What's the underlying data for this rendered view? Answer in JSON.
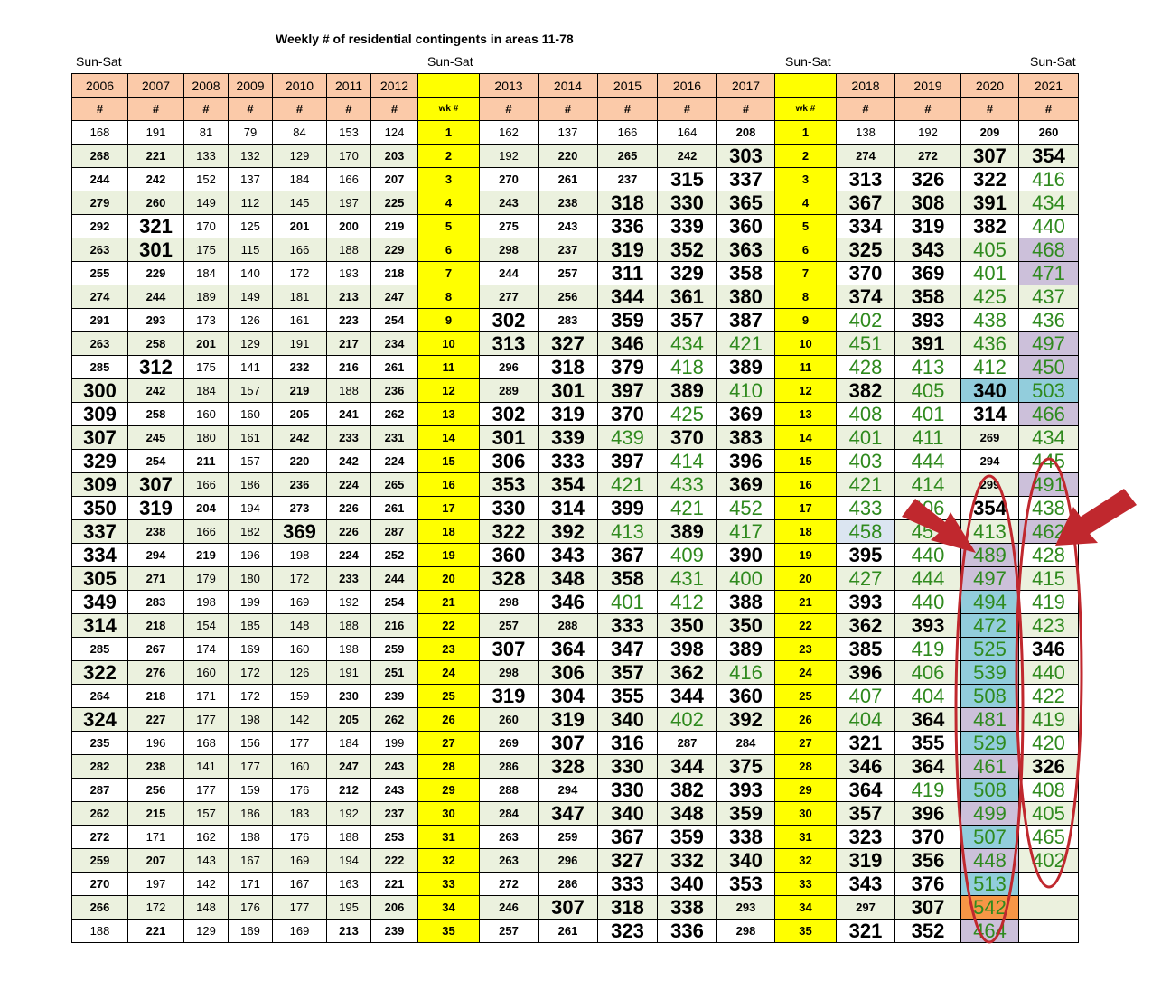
{
  "title": "Weekly # of residential contingents in areas 11-78",
  "sun_sat_labels": [
    "Sun-Sat",
    "Sun-Sat",
    "Sun-Sat",
    "Sun-Sat"
  ],
  "colors": {
    "header": "#fbcaa9",
    "week_column": "#ffff00",
    "row_fill": "#ebf1de",
    "green_text": "#2f8a1e",
    "highlight_teal": "#92cddc",
    "highlight_purple": "#ccc0da",
    "highlight_light_blue": "#dbe5f1",
    "highlight_orange": "#f79646",
    "annotation_red": "#c0282e"
  },
  "table": {
    "headers": [
      "2006",
      "2007",
      "2008",
      "2009",
      "2010",
      "2011",
      "2012",
      "",
      "2013",
      "2014",
      "2015",
      "2016",
      "2017",
      "",
      "2018",
      "2019",
      "2020",
      "2021"
    ],
    "subheaders": [
      "#",
      "#",
      "#",
      "#",
      "#",
      "#",
      "#",
      "wk #",
      "#",
      "#",
      "#",
      "#",
      "#",
      "wk #",
      "#",
      "#",
      "#",
      "#"
    ],
    "rows": [
      [
        "168",
        "191",
        "81",
        "79",
        "84",
        "153",
        "124",
        "1",
        "162",
        "137",
        "166",
        "164",
        "208",
        "1",
        "138",
        "192",
        "209",
        "260"
      ],
      [
        "268",
        "221",
        "133",
        "132",
        "129",
        "170",
        "203",
        "2",
        "192",
        "220",
        "265",
        "242",
        "303",
        "2",
        "274",
        "272",
        "307",
        "354"
      ],
      [
        "244",
        "242",
        "152",
        "137",
        "184",
        "166",
        "207",
        "3",
        "270",
        "261",
        "237",
        "315",
        "337",
        "3",
        "313",
        "326",
        "322",
        "416"
      ],
      [
        "279",
        "260",
        "149",
        "112",
        "145",
        "197",
        "225",
        "4",
        "243",
        "238",
        "318",
        "330",
        "365",
        "4",
        "367",
        "308",
        "391",
        "434"
      ],
      [
        "292",
        "321",
        "170",
        "125",
        "201",
        "200",
        "219",
        "5",
        "275",
        "243",
        "336",
        "339",
        "360",
        "5",
        "334",
        "319",
        "382",
        "440"
      ],
      [
        "263",
        "301",
        "175",
        "115",
        "166",
        "188",
        "229",
        "6",
        "298",
        "237",
        "319",
        "352",
        "363",
        "6",
        "325",
        "343",
        "405",
        "468"
      ],
      [
        "255",
        "229",
        "184",
        "140",
        "172",
        "193",
        "218",
        "7",
        "244",
        "257",
        "311",
        "329",
        "358",
        "7",
        "370",
        "369",
        "401",
        "471"
      ],
      [
        "274",
        "244",
        "189",
        "149",
        "181",
        "213",
        "247",
        "8",
        "277",
        "256",
        "344",
        "361",
        "380",
        "8",
        "374",
        "358",
        "425",
        "437"
      ],
      [
        "291",
        "293",
        "173",
        "126",
        "161",
        "223",
        "254",
        "9",
        "302",
        "283",
        "359",
        "357",
        "387",
        "9",
        "402",
        "393",
        "438",
        "436"
      ],
      [
        "263",
        "258",
        "201",
        "129",
        "191",
        "217",
        "234",
        "10",
        "313",
        "327",
        "346",
        "434",
        "421",
        "10",
        "451",
        "391",
        "436",
        "497"
      ],
      [
        "285",
        "312",
        "175",
        "141",
        "232",
        "216",
        "261",
        "11",
        "296",
        "318",
        "379",
        "418",
        "389",
        "11",
        "428",
        "413",
        "412",
        "450"
      ],
      [
        "300",
        "242",
        "184",
        "157",
        "219",
        "188",
        "236",
        "12",
        "289",
        "301",
        "397",
        "389",
        "410",
        "12",
        "382",
        "405",
        "340",
        "503"
      ],
      [
        "309",
        "258",
        "160",
        "160",
        "205",
        "241",
        "262",
        "13",
        "302",
        "319",
        "370",
        "425",
        "369",
        "13",
        "408",
        "401",
        "314",
        "466"
      ],
      [
        "307",
        "245",
        "180",
        "161",
        "242",
        "233",
        "231",
        "14",
        "301",
        "339",
        "439",
        "370",
        "383",
        "14",
        "401",
        "411",
        "269",
        "434"
      ],
      [
        "329",
        "254",
        "211",
        "157",
        "220",
        "242",
        "224",
        "15",
        "306",
        "333",
        "397",
        "414",
        "396",
        "15",
        "403",
        "444",
        "294",
        "445"
      ],
      [
        "309",
        "307",
        "166",
        "186",
        "236",
        "224",
        "265",
        "16",
        "353",
        "354",
        "421",
        "433",
        "369",
        "16",
        "421",
        "414",
        "299",
        "491"
      ],
      [
        "350",
        "319",
        "204",
        "194",
        "273",
        "226",
        "261",
        "17",
        "330",
        "314",
        "399",
        "421",
        "452",
        "17",
        "433",
        "406",
        "354",
        "438"
      ],
      [
        "337",
        "238",
        "166",
        "182",
        "369",
        "226",
        "287",
        "18",
        "322",
        "392",
        "413",
        "389",
        "417",
        "18",
        "458",
        "451",
        "413",
        "462"
      ],
      [
        "334",
        "294",
        "219",
        "196",
        "198",
        "224",
        "252",
        "19",
        "360",
        "343",
        "367",
        "409",
        "390",
        "19",
        "395",
        "440",
        "489",
        "428"
      ],
      [
        "305",
        "271",
        "179",
        "180",
        "172",
        "233",
        "244",
        "20",
        "328",
        "348",
        "358",
        "431",
        "400",
        "20",
        "427",
        "444",
        "497",
        "415"
      ],
      [
        "349",
        "283",
        "198",
        "199",
        "169",
        "192",
        "254",
        "21",
        "298",
        "346",
        "401",
        "412",
        "388",
        "21",
        "393",
        "440",
        "494",
        "419"
      ],
      [
        "314",
        "218",
        "154",
        "185",
        "148",
        "188",
        "216",
        "22",
        "257",
        "288",
        "333",
        "350",
        "350",
        "22",
        "362",
        "393",
        "472",
        "423"
      ],
      [
        "285",
        "267",
        "174",
        "169",
        "160",
        "198",
        "259",
        "23",
        "307",
        "364",
        "347",
        "398",
        "389",
        "23",
        "385",
        "419",
        "525",
        "346"
      ],
      [
        "322",
        "276",
        "160",
        "172",
        "126",
        "191",
        "251",
        "24",
        "298",
        "306",
        "357",
        "362",
        "416",
        "24",
        "396",
        "406",
        "539",
        "440"
      ],
      [
        "264",
        "218",
        "171",
        "172",
        "159",
        "230",
        "239",
        "25",
        "319",
        "304",
        "355",
        "344",
        "360",
        "25",
        "407",
        "404",
        "508",
        "422"
      ],
      [
        "324",
        "227",
        "177",
        "198",
        "142",
        "205",
        "262",
        "26",
        "260",
        "319",
        "340",
        "402",
        "392",
        "26",
        "404",
        "364",
        "481",
        "419"
      ],
      [
        "235",
        "196",
        "168",
        "156",
        "177",
        "184",
        "199",
        "27",
        "269",
        "307",
        "316",
        "287",
        "284",
        "27",
        "321",
        "355",
        "529",
        "420"
      ],
      [
        "282",
        "238",
        "141",
        "177",
        "160",
        "247",
        "243",
        "28",
        "286",
        "328",
        "330",
        "344",
        "375",
        "28",
        "346",
        "364",
        "461",
        "326"
      ],
      [
        "287",
        "256",
        "177",
        "159",
        "176",
        "212",
        "243",
        "29",
        "288",
        "294",
        "330",
        "382",
        "393",
        "29",
        "364",
        "419",
        "508",
        "408"
      ],
      [
        "262",
        "215",
        "157",
        "186",
        "183",
        "192",
        "237",
        "30",
        "284",
        "347",
        "340",
        "348",
        "359",
        "30",
        "357",
        "396",
        "499",
        "405"
      ],
      [
        "272",
        "171",
        "162",
        "188",
        "176",
        "188",
        "253",
        "31",
        "263",
        "259",
        "367",
        "359",
        "338",
        "31",
        "323",
        "370",
        "507",
        "465"
      ],
      [
        "259",
        "207",
        "143",
        "167",
        "169",
        "194",
        "222",
        "32",
        "263",
        "296",
        "327",
        "332",
        "340",
        "32",
        "319",
        "356",
        "448",
        "402"
      ],
      [
        "270",
        "197",
        "142",
        "171",
        "167",
        "163",
        "221",
        "33",
        "272",
        "286",
        "333",
        "340",
        "353",
        "33",
        "343",
        "376",
        "513",
        ""
      ],
      [
        "266",
        "172",
        "148",
        "176",
        "177",
        "195",
        "206",
        "34",
        "246",
        "307",
        "318",
        "338",
        "293",
        "34",
        "297",
        "307",
        "542",
        ""
      ],
      [
        "188",
        "221",
        "129",
        "169",
        "169",
        "213",
        "239",
        "35",
        "257",
        "261",
        "323",
        "336",
        "298",
        "35",
        "321",
        "352",
        "464",
        ""
      ]
    ]
  }
}
